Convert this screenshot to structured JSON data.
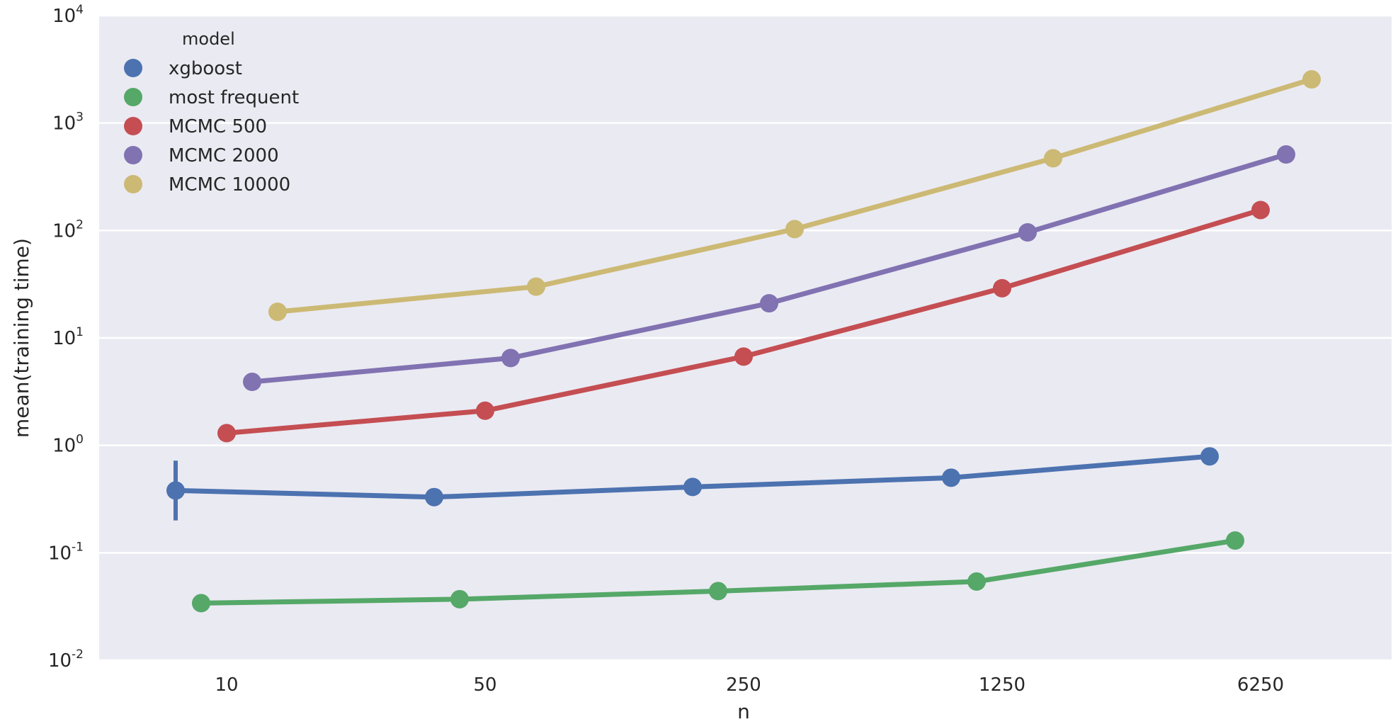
{
  "chart_data": {
    "type": "line",
    "title": "",
    "xlabel": "n",
    "ylabel": "mean(training time)",
    "categories": [
      "10",
      "50",
      "250",
      "1250",
      "6250"
    ],
    "y_scale": "log",
    "ylim": [
      0.01,
      10000
    ],
    "y_ticks": [
      {
        "value": 0.01,
        "base": "10",
        "exp": "-2"
      },
      {
        "value": 0.1,
        "base": "10",
        "exp": "-1"
      },
      {
        "value": 1,
        "base": "10",
        "exp": "0"
      },
      {
        "value": 10,
        "base": "10",
        "exp": "1"
      },
      {
        "value": 100,
        "base": "10",
        "exp": "2"
      },
      {
        "value": 1000,
        "base": "10",
        "exp": "3"
      },
      {
        "value": 10000,
        "base": "10",
        "exp": "4"
      }
    ],
    "grid": true,
    "legend": {
      "title": "model",
      "position": "top-left"
    },
    "series": [
      {
        "name": "xgboost",
        "color": "#4c72b0",
        "values": [
          0.38,
          0.33,
          0.41,
          0.5,
          0.79
        ],
        "error": [
          {
            "index": 0,
            "low": 0.2,
            "high": 0.72
          }
        ]
      },
      {
        "name": "most frequent",
        "color": "#55a868",
        "values": [
          0.034,
          0.037,
          0.044,
          0.054,
          0.13
        ]
      },
      {
        "name": "MCMC 500",
        "color": "#c44e52",
        "values": [
          1.3,
          2.1,
          6.7,
          29,
          155
        ]
      },
      {
        "name": "MCMC 2000",
        "color": "#8172b2",
        "values": [
          3.9,
          6.5,
          21,
          96,
          510
        ]
      },
      {
        "name": "MCMC 10000",
        "color": "#ccb974",
        "values": [
          17.5,
          30,
          103,
          470,
          2550
        ]
      }
    ]
  }
}
